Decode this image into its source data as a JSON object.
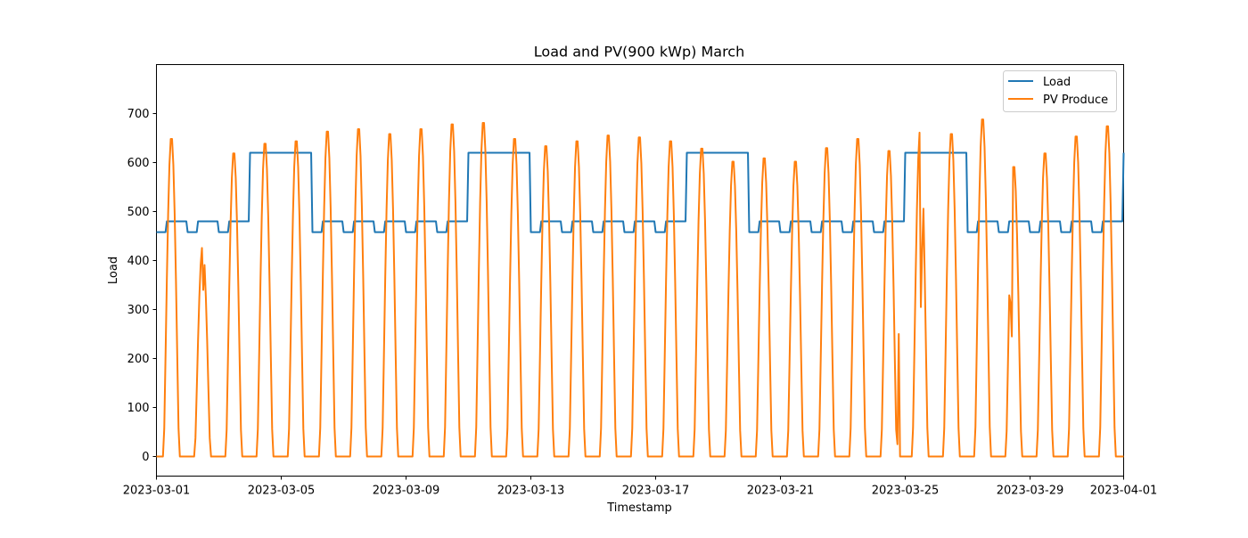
{
  "chart_data": {
    "type": "line",
    "title": "Load and PV(900 kWp) March",
    "xlabel": "Timestamp",
    "ylabel": "Load",
    "x_range": [
      "2023-03-01",
      "2023-04-01"
    ],
    "ylim": [
      -40,
      800
    ],
    "x_ticks": [
      "2023-03-01",
      "2023-03-05",
      "2023-03-09",
      "2023-03-13",
      "2023-03-17",
      "2023-03-21",
      "2023-03-25",
      "2023-03-29",
      "2023-04-01"
    ],
    "y_ticks": [
      0,
      100,
      200,
      300,
      400,
      500,
      600,
      700
    ],
    "grid": false,
    "legend_position": "top-right",
    "series": [
      {
        "name": "Load",
        "color": "#1f77b4",
        "levels": {
          "weekday_day": 480,
          "weekday_night": 458,
          "weekend": 620
        },
        "weekend_periods": [
          [
            "2023-03-04",
            "2023-03-06"
          ],
          [
            "2023-03-11",
            "2023-03-13"
          ],
          [
            "2023-03-18",
            "2023-03-20"
          ],
          [
            "2023-03-25",
            "2023-03-27"
          ]
        ],
        "final_value": 620
      },
      {
        "name": "PV Produce",
        "color": "#ff7f0e",
        "daily_peaks": [
          655,
          430,
          625,
          645,
          650,
          670,
          675,
          665,
          675,
          685,
          688,
          655,
          640,
          650,
          662,
          658,
          650,
          635,
          608,
          615,
          608,
          636,
          655,
          630,
          668,
          665,
          695,
          597,
          625,
          660,
          681
        ],
        "anomalies": [
          {
            "time": "2023-03-02T12:00",
            "value": 340
          },
          {
            "time": "2023-03-24T18:00",
            "value": 25
          },
          {
            "time": "2023-03-24T19:00",
            "value": 250
          },
          {
            "time": "2023-03-25T12:00",
            "value": 305
          },
          {
            "time": "2023-03-25T13:00",
            "value": 420
          },
          {
            "time": "2023-03-28T09:00",
            "value": 312
          },
          {
            "time": "2023-03-28T10:00",
            "value": 245
          }
        ]
      }
    ]
  }
}
